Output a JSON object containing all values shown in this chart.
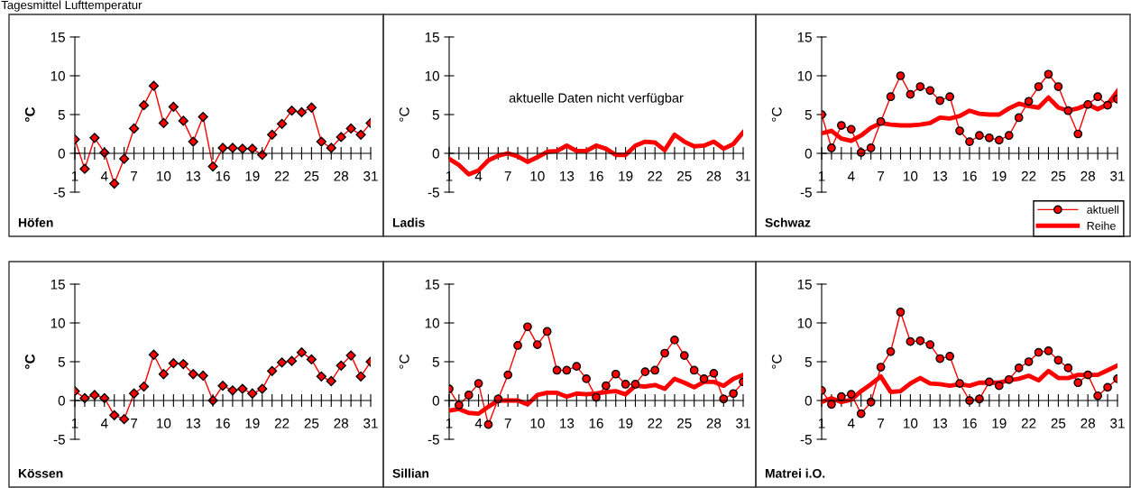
{
  "chart_data": [
    {
      "type": "line",
      "title": "Höfen",
      "ylabel": "°C",
      "annotations": [
        "Tagesmittel Lufttemperatur"
      ],
      "categories": [
        "1",
        null,
        null,
        "4",
        null,
        null,
        "7",
        null,
        null,
        "10",
        null,
        null,
        "13",
        null,
        null,
        "16",
        null,
        null,
        "19",
        null,
        null,
        "22",
        null,
        null,
        "25",
        null,
        null,
        "28",
        null,
        null,
        "31"
      ],
      "ylim": [
        -5,
        15
      ],
      "yticks": [
        -5,
        0,
        5,
        10,
        15
      ],
      "grid": false,
      "legend": false,
      "series": [
        {
          "color": "#ff0000",
          "marker": "diamond",
          "values": [
            1.8,
            -2.0,
            2.0,
            0.1,
            -3.9,
            -0.7,
            3.2,
            6.2,
            8.7,
            3.9,
            6.0,
            4.2,
            1.5,
            4.7,
            -1.7,
            0.7,
            0.7,
            0.6,
            0.6,
            -0.2,
            2.4,
            3.8,
            5.5,
            5.3,
            5.9,
            1.5,
            0.7,
            2.1,
            3.2,
            2.4,
            3.9
          ]
        }
      ]
    },
    {
      "type": "line",
      "title": "Ladis",
      "ylabel": "°C",
      "annotations": [
        "aktuelle Daten nicht verfügbar"
      ],
      "categories": [
        "1",
        null,
        null,
        "4",
        null,
        null,
        "7",
        null,
        null,
        "10",
        null,
        null,
        "13",
        null,
        null,
        "16",
        null,
        null,
        "19",
        null,
        null,
        "22",
        null,
        null,
        "25",
        null,
        null,
        "28",
        null,
        null,
        "31"
      ],
      "ylim": [
        -5,
        15
      ],
      "yticks": [
        -5,
        0,
        5,
        10,
        15
      ],
      "grid": false,
      "legend": false,
      "series": [
        {
          "color": "#ff0000",
          "marker": "none",
          "values": [
            -0.7,
            -1.5,
            -2.7,
            -2.2,
            -0.9,
            -0.3,
            0.0,
            -0.4,
            -1.1,
            -0.5,
            0.2,
            0.3,
            1.0,
            0.3,
            0.3,
            1.0,
            0.6,
            -0.2,
            -0.2,
            1.0,
            1.5,
            1.4,
            0.4,
            2.4,
            1.5,
            0.9,
            1.0,
            1.5,
            0.6,
            1.2,
            2.7
          ]
        }
      ]
    },
    {
      "type": "line",
      "title": "Schwaz",
      "ylabel": "°C",
      "categories": [
        "1",
        null,
        null,
        "4",
        null,
        null,
        "7",
        null,
        null,
        "10",
        null,
        null,
        "13",
        null,
        null,
        "16",
        null,
        null,
        "19",
        null,
        null,
        "22",
        null,
        null,
        "25",
        null,
        null,
        "28",
        null,
        null,
        "31"
      ],
      "ylim": [
        -5,
        15
      ],
      "yticks": [
        -5,
        0,
        5,
        10,
        15
      ],
      "grid": false,
      "legend": "bottom right",
      "series": [
        {
          "name": "aktuell",
          "color": "#ff0000",
          "marker": "circle",
          "values": [
            5.0,
            0.7,
            3.6,
            3.1,
            0.1,
            0.7,
            4.1,
            7.3,
            10.0,
            7.6,
            8.6,
            8.1,
            6.8,
            7.3,
            2.9,
            1.5,
            2.3,
            2.0,
            1.7,
            2.3,
            4.6,
            6.7,
            8.6,
            10.2,
            8.6,
            5.5,
            2.5,
            6.3,
            7.3,
            6.2,
            7.0
          ]
        },
        {
          "name": "Reihe",
          "color": "#ff0000",
          "marker": "none",
          "values": [
            2.6,
            2.9,
            1.9,
            1.6,
            2.3,
            3.3,
            3.9,
            3.7,
            3.6,
            3.6,
            3.7,
            3.9,
            4.6,
            4.5,
            4.8,
            5.5,
            5.1,
            5.0,
            5.0,
            5.8,
            6.4,
            6.1,
            5.9,
            7.2,
            5.9,
            5.5,
            5.8,
            6.3,
            5.7,
            6.3,
            8.0
          ]
        }
      ]
    },
    {
      "type": "line",
      "title": "Kössen",
      "ylabel": "°C",
      "categories": [
        "1",
        null,
        null,
        "4",
        null,
        null,
        "7",
        null,
        null,
        "10",
        null,
        null,
        "13",
        null,
        null,
        "16",
        null,
        null,
        "19",
        null,
        null,
        "22",
        null,
        null,
        "25",
        null,
        null,
        "28",
        null,
        null,
        "31"
      ],
      "ylim": [
        -5,
        15
      ],
      "yticks": [
        -5,
        0,
        5,
        10,
        15
      ],
      "grid": false,
      "legend": false,
      "series": [
        {
          "color": "#ff0000",
          "marker": "diamond",
          "values": [
            1.2,
            0.3,
            0.7,
            0.3,
            -1.9,
            -2.4,
            0.9,
            1.8,
            5.9,
            3.4,
            4.8,
            4.7,
            3.4,
            3.2,
            0.0,
            1.9,
            1.3,
            1.5,
            0.9,
            1.5,
            3.8,
            4.9,
            5.1,
            6.2,
            5.3,
            3.1,
            2.5,
            4.5,
            5.8,
            3.1,
            5.0
          ]
        }
      ]
    },
    {
      "type": "line",
      "title": "Sillian",
      "ylabel": "°C",
      "categories": [
        "1",
        null,
        null,
        "4",
        null,
        null,
        "7",
        null,
        null,
        "10",
        null,
        null,
        "13",
        null,
        null,
        "16",
        null,
        null,
        "19",
        null,
        null,
        "22",
        null,
        null,
        "25",
        null,
        null,
        "28",
        null,
        null,
        "31"
      ],
      "ylim": [
        -5,
        15
      ],
      "yticks": [
        -5,
        0,
        5,
        10,
        15
      ],
      "grid": false,
      "legend": false,
      "series": [
        {
          "color": "#ff0000",
          "marker": "circle",
          "values": [
            1.5,
            -0.6,
            0.7,
            2.2,
            -3.1,
            0.2,
            3.3,
            7.1,
            9.5,
            7.2,
            8.9,
            3.9,
            3.9,
            4.4,
            2.8,
            0.4,
            1.9,
            3.4,
            2.1,
            2.1,
            3.7,
            3.9,
            6.1,
            7.8,
            5.8,
            3.9,
            2.8,
            3.5,
            0.2,
            0.9,
            2.4
          ]
        },
        {
          "color": "#ff0000",
          "marker": "none",
          "values": [
            -1.3,
            -1.1,
            -1.6,
            -1.7,
            -0.8,
            0.0,
            0.0,
            0.0,
            -0.5,
            0.7,
            1.0,
            1.0,
            0.5,
            0.9,
            0.8,
            0.9,
            1.1,
            1.2,
            0.8,
            1.9,
            1.8,
            2.0,
            1.5,
            2.8,
            2.3,
            1.7,
            2.4,
            2.4,
            1.9,
            2.8,
            3.3
          ]
        }
      ]
    },
    {
      "type": "line",
      "title": "Matrei i.O.",
      "ylabel": "°C",
      "categories": [
        "1",
        null,
        null,
        "4",
        null,
        null,
        "7",
        null,
        null,
        "10",
        null,
        null,
        "13",
        null,
        null,
        "16",
        null,
        null,
        "19",
        null,
        null,
        "22",
        null,
        null,
        "25",
        null,
        null,
        "28",
        null,
        null,
        "31"
      ],
      "ylim": [
        -5,
        15
      ],
      "yticks": [
        -5,
        0,
        5,
        10,
        15
      ],
      "grid": false,
      "legend": false,
      "series": [
        {
          "color": "#ff0000",
          "marker": "circle",
          "values": [
            1.3,
            -0.5,
            0.5,
            0.8,
            -1.7,
            -0.2,
            4.3,
            6.3,
            11.4,
            7.6,
            7.7,
            7.2,
            5.4,
            5.7,
            2.2,
            0.0,
            0.2,
            2.4,
            1.9,
            2.7,
            4.2,
            5.0,
            6.2,
            6.4,
            5.2,
            4.2,
            2.3,
            3.3,
            0.6,
            1.7,
            2.8
          ]
        },
        {
          "color": "#ff0000",
          "marker": "none",
          "values": [
            -0.2,
            0.3,
            -0.2,
            0.1,
            1.2,
            2.1,
            3.1,
            1.1,
            1.2,
            2.2,
            2.9,
            2.2,
            2.1,
            1.9,
            2.1,
            1.9,
            2.3,
            2.3,
            2.3,
            2.6,
            2.8,
            3.2,
            2.6,
            3.8,
            2.9,
            2.9,
            3.3,
            3.3,
            3.3,
            3.9,
            4.5
          ]
        }
      ]
    }
  ]
}
